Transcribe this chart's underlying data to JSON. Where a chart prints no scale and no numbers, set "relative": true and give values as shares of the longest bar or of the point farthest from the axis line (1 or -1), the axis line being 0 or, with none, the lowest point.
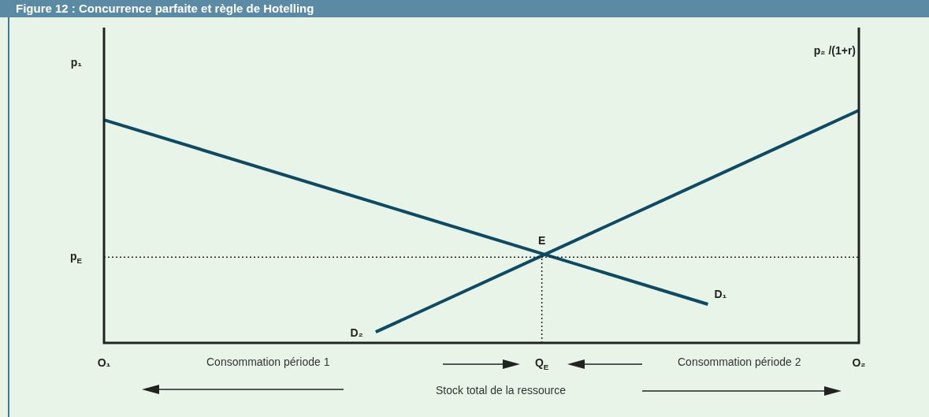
{
  "chart_data": {
    "type": "line",
    "title": "Figure 12 : Concurrence parfaite et règle de Hotelling",
    "ylabel": "p₁",
    "y2label": "p₂ /(1+r)",
    "relative": true,
    "marker": "none",
    "legend": false,
    "categories": [
      "O₁",
      null,
      null,
      null,
      null,
      null,
      null,
      null,
      null,
      null,
      null,
      null,
      null,
      null,
      null,
      null,
      null,
      null,
      null,
      null,
      null,
      null,
      null,
      null,
      null,
      null,
      null,
      null,
      null,
      "Q$_{E}$",
      null,
      null,
      null,
      null,
      null,
      null,
      null,
      null,
      null,
      null,
      null,
      null,
      null,
      null,
      null,
      null,
      null,
      null,
      null,
      null,
      "O₂"
    ],
    "series": [
      {
        "name": "D₁",
        "color": "#0d4a63",
        "values": [
          0.959,
          null,
          null,
          null,
          null,
          null,
          null,
          null,
          null,
          null,
          null,
          null,
          null,
          null,
          null,
          null,
          null,
          null,
          null,
          null,
          null,
          null,
          null,
          null,
          null,
          null,
          null,
          null,
          null,
          null,
          null,
          null,
          null,
          null,
          null,
          null,
          null,
          null,
          null,
          null,
          0.166,
          null,
          null,
          null,
          null,
          null,
          null,
          null,
          null,
          null,
          null
        ]
      },
      {
        "name": "D₂",
        "color": "#0d4a63",
        "values": [
          null,
          null,
          null,
          null,
          null,
          null,
          null,
          null,
          null,
          null,
          null,
          null,
          null,
          null,
          null,
          null,
          null,
          null,
          0.047,
          null,
          null,
          null,
          null,
          null,
          null,
          null,
          null,
          null,
          null,
          null,
          null,
          null,
          null,
          null,
          null,
          null,
          null,
          null,
          null,
          null,
          null,
          null,
          null,
          null,
          null,
          null,
          null,
          null,
          null,
          null,
          1
        ]
      }
    ],
    "ref_lines": [
      {
        "axis": "y",
        "value": 0.369,
        "label": "p$_{E}$",
        "line_style": "dotted",
        "color": "#222222"
      },
      {
        "axis": "x",
        "value": "Q$_{E}$",
        "label": null,
        "line_style": "dotted",
        "color": "#222222"
      }
    ],
    "annotations": [
      {
        "text": "E",
        "x": "Q$_{E}$",
        "y": 0.369
      },
      "Consommation période 1",
      "Consommation période 2",
      "Stock total de la ressource"
    ]
  }
}
